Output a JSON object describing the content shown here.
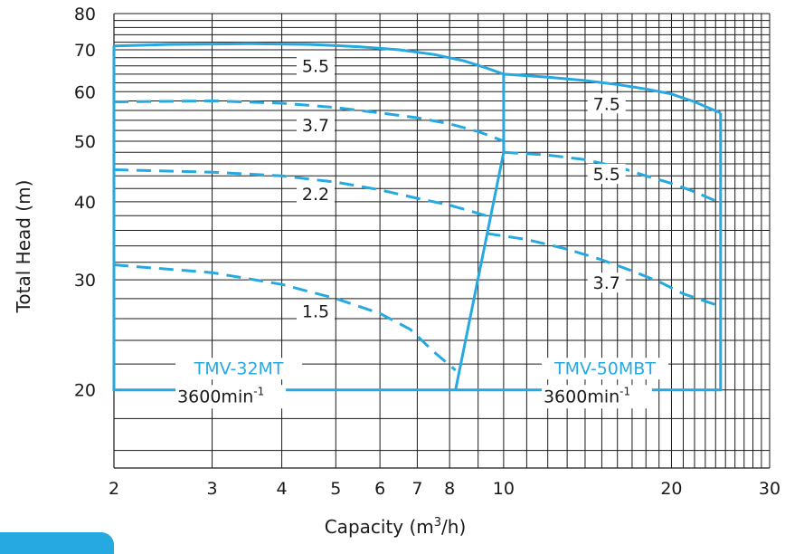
{
  "chart_data": {
    "type": "line",
    "xlabel": "Capacity (m³/h)",
    "ylabel": "Total Head (m)",
    "x_scale": "log",
    "y_scale": "log",
    "xlim": [
      2,
      30
    ],
    "ylim": [
      15,
      80
    ],
    "x_ticks": [
      2,
      3,
      4,
      5,
      6,
      7,
      8,
      10,
      20,
      30
    ],
    "y_ticks": [
      20,
      30,
      40,
      50,
      60,
      70,
      80
    ],
    "grid": true,
    "colors": {
      "curve": "#26a9e0",
      "grid": "#1a1a1a",
      "text": "#1a1a1a",
      "tab": "#26a9e0"
    },
    "series": [
      {
        "name": "5.5",
        "model": "TMV-32MT",
        "style": "solid",
        "points": [
          [
            2,
            71
          ],
          [
            2.5,
            71.4
          ],
          [
            3.5,
            71.6
          ],
          [
            4.5,
            71.4
          ],
          [
            5.5,
            70.8
          ],
          [
            6.5,
            70
          ],
          [
            7.5,
            68.8
          ],
          [
            8.5,
            67.2
          ],
          [
            9.3,
            65.5
          ],
          [
            10,
            64
          ]
        ]
      },
      {
        "name": "3.7",
        "model": "TMV-32MT",
        "style": "dashed",
        "points": [
          [
            2,
            57.8
          ],
          [
            3,
            58
          ],
          [
            4,
            57.5
          ],
          [
            5,
            56.6
          ],
          [
            6,
            55.5
          ],
          [
            7,
            54.5
          ],
          [
            8,
            53.3
          ],
          [
            9,
            51.8
          ],
          [
            10,
            50
          ]
        ]
      },
      {
        "name": "2.2",
        "model": "TMV-32MT",
        "style": "dashed",
        "points": [
          [
            2,
            45
          ],
          [
            3,
            44.6
          ],
          [
            4,
            44
          ],
          [
            5,
            43
          ],
          [
            6,
            41.8
          ],
          [
            7,
            40.5
          ],
          [
            8,
            39.5
          ],
          [
            9.3,
            38
          ]
        ]
      },
      {
        "name": "1.5",
        "model": "TMV-32MT",
        "style": "dashed",
        "points": [
          [
            2,
            31.7
          ],
          [
            3,
            30.8
          ],
          [
            4,
            29.5
          ],
          [
            5,
            28
          ],
          [
            6,
            26.5
          ],
          [
            6.8,
            25
          ],
          [
            7.5,
            23
          ],
          [
            8.2,
            21.5
          ]
        ]
      },
      {
        "name": "7.5",
        "model": "TMV-50MBT",
        "style": "solid",
        "points": [
          [
            10,
            64
          ],
          [
            12,
            63.3
          ],
          [
            14,
            62.5
          ],
          [
            16,
            61.6
          ],
          [
            18,
            60.6
          ],
          [
            20,
            59.5
          ],
          [
            22,
            57.8
          ],
          [
            24.5,
            55.5
          ]
        ]
      },
      {
        "name": "5.5",
        "model": "TMV-50MBT",
        "style": "dashed",
        "points": [
          [
            10,
            48
          ],
          [
            12,
            47.5
          ],
          [
            14,
            46.7
          ],
          [
            16,
            45.5
          ],
          [
            18,
            44
          ],
          [
            20,
            42.8
          ],
          [
            22,
            41.5
          ],
          [
            24.5,
            39.8
          ]
        ]
      },
      {
        "name": "3.7",
        "model": "TMV-50MBT",
        "style": "dashed",
        "points": [
          [
            9.3,
            35.6
          ],
          [
            11,
            34.8
          ],
          [
            13,
            33.6
          ],
          [
            15,
            32.3
          ],
          [
            17,
            31
          ],
          [
            19,
            29.8
          ],
          [
            21,
            28.5
          ],
          [
            24.5,
            27.2
          ]
        ]
      }
    ],
    "envelopes": [
      {
        "model": "TMV-32MT",
        "points": [
          [
            2,
            71
          ],
          [
            2,
            20
          ],
          [
            8.2,
            20
          ]
        ]
      },
      {
        "model": "TMV-50MBT",
        "points": [
          [
            8.2,
            20
          ],
          [
            24.5,
            20
          ],
          [
            24.5,
            55.5
          ]
        ]
      },
      {
        "model": "boundary",
        "points": [
          [
            8.2,
            20
          ],
          [
            10,
            48
          ],
          [
            10,
            64
          ]
        ]
      }
    ],
    "curve_labels": [
      {
        "text": "5.5",
        "x": 4.6,
        "y": 65
      },
      {
        "text": "3.7",
        "x": 4.6,
        "y": 52.2
      },
      {
        "text": "2.2",
        "x": 4.6,
        "y": 40.5
      },
      {
        "text": "1.5",
        "x": 4.6,
        "y": 26.3
      },
      {
        "text": "7.5",
        "x": 15.3,
        "y": 56.5
      },
      {
        "text": "5.5",
        "x": 15.3,
        "y": 43.6
      },
      {
        "text": "3.7",
        "x": 15.3,
        "y": 29.2
      }
    ],
    "models": [
      {
        "name": "TMV-32MT",
        "speed": "3600min",
        "speed_sup": "-1",
        "x": 3.35,
        "y": 21.2
      },
      {
        "name": "TMV-50MBT",
        "speed": "3600min",
        "speed_sup": "-1",
        "x": 15.2,
        "y": 21.2
      }
    ]
  }
}
